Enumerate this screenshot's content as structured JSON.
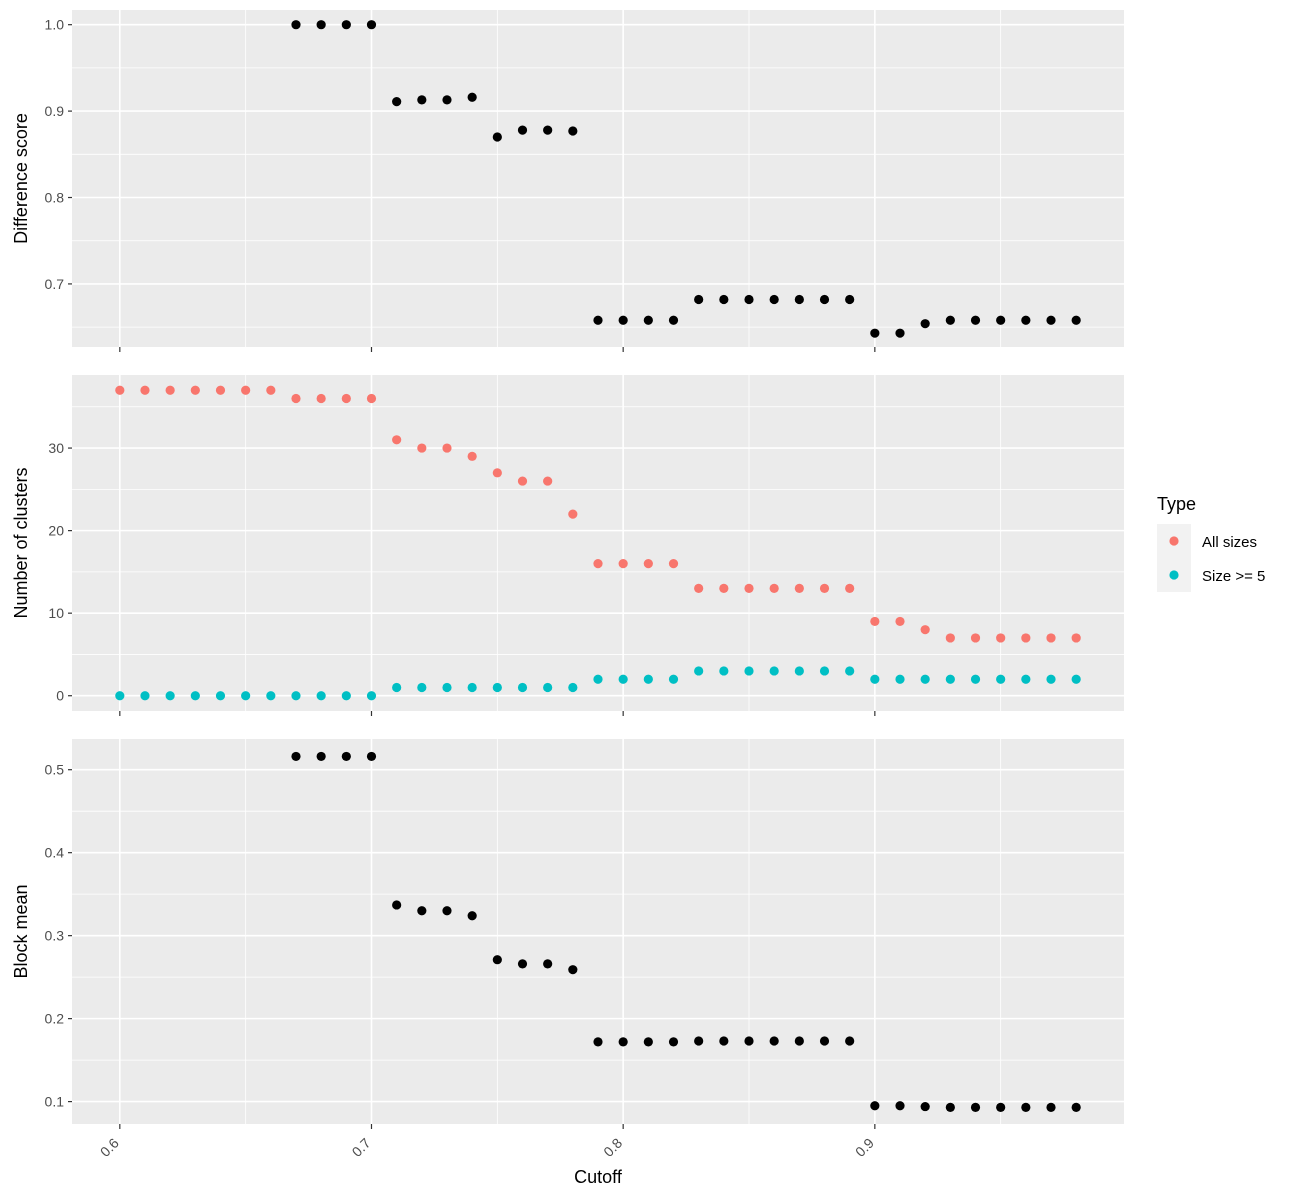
{
  "chart_data": {
    "type": "scatter",
    "xlabel": "Cutoff",
    "xlim": [
      0.581,
      0.999
    ],
    "xticks": [
      0.6,
      0.7,
      0.8,
      0.9
    ],
    "xminor": [
      0.65,
      0.75,
      0.85,
      0.95
    ],
    "xtick_labels": [
      "0.6",
      "0.7",
      "0.8",
      "0.9"
    ],
    "grid": true,
    "legend": {
      "title": "Type",
      "position": "right",
      "entries": [
        {
          "name": "All sizes",
          "color": "#f8766d"
        },
        {
          "name": "Size >= 5",
          "color": "#00bfc4"
        }
      ]
    },
    "panels": [
      {
        "id": "difference-score",
        "ylabel": "Difference score",
        "ylim": [
          0.627,
          1.017
        ],
        "yticks": [
          0.7,
          0.8,
          0.9,
          1.0
        ],
        "yminor": [
          0.65,
          0.75,
          0.85,
          0.95
        ],
        "ytick_labels": [
          "0.7",
          "0.8",
          "0.9",
          "1.0"
        ],
        "series": [
          {
            "color": "#000000",
            "x": [
              0.67,
              0.68,
              0.69,
              0.7,
              0.71,
              0.72,
              0.73,
              0.74,
              0.75,
              0.76,
              0.77,
              0.78,
              0.79,
              0.8,
              0.81,
              0.82,
              0.83,
              0.84,
              0.85,
              0.86,
              0.87,
              0.88,
              0.89,
              0.9,
              0.91,
              0.92,
              0.93,
              0.94,
              0.95,
              0.96,
              0.97,
              0.98
            ],
            "y": [
              1.0,
              1.0,
              1.0,
              1.0,
              0.911,
              0.913,
              0.913,
              0.916,
              0.87,
              0.878,
              0.878,
              0.877,
              0.658,
              0.658,
              0.658,
              0.658,
              0.682,
              0.682,
              0.682,
              0.682,
              0.682,
              0.682,
              0.682,
              0.643,
              0.643,
              0.654,
              0.658,
              0.658,
              0.658,
              0.658,
              0.658,
              0.658
            ]
          }
        ]
      },
      {
        "id": "number-of-clusters",
        "ylabel": "Number of clusters",
        "ylim": [
          -1.85,
          38.85
        ],
        "yticks": [
          0,
          10,
          20,
          30
        ],
        "yminor": [
          5,
          15,
          25,
          35
        ],
        "ytick_labels": [
          "0",
          "10",
          "20",
          "30"
        ],
        "series": [
          {
            "name": "All sizes",
            "color": "#f8766d",
            "x": [
              0.6,
              0.61,
              0.62,
              0.63,
              0.64,
              0.65,
              0.66,
              0.67,
              0.68,
              0.69,
              0.7,
              0.71,
              0.72,
              0.73,
              0.74,
              0.75,
              0.76,
              0.77,
              0.78,
              0.79,
              0.8,
              0.81,
              0.82,
              0.83,
              0.84,
              0.85,
              0.86,
              0.87,
              0.88,
              0.89,
              0.9,
              0.91,
              0.92,
              0.93,
              0.94,
              0.95,
              0.96,
              0.97,
              0.98
            ],
            "y": [
              37,
              37,
              37,
              37,
              37,
              37,
              37,
              36,
              36,
              36,
              36,
              31,
              30,
              30,
              29,
              27,
              26,
              26,
              22,
              16,
              16,
              16,
              16,
              13,
              13,
              13,
              13,
              13,
              13,
              13,
              9,
              9,
              8,
              7,
              7,
              7,
              7,
              7,
              7
            ]
          },
          {
            "name": "Size >= 5",
            "color": "#00bfc4",
            "x": [
              0.6,
              0.61,
              0.62,
              0.63,
              0.64,
              0.65,
              0.66,
              0.67,
              0.68,
              0.69,
              0.7,
              0.71,
              0.72,
              0.73,
              0.74,
              0.75,
              0.76,
              0.77,
              0.78,
              0.79,
              0.8,
              0.81,
              0.82,
              0.83,
              0.84,
              0.85,
              0.86,
              0.87,
              0.88,
              0.89,
              0.9,
              0.91,
              0.92,
              0.93,
              0.94,
              0.95,
              0.96,
              0.97,
              0.98
            ],
            "y": [
              0,
              0,
              0,
              0,
              0,
              0,
              0,
              0,
              0,
              0,
              0,
              1,
              1,
              1,
              1,
              1,
              1,
              1,
              1,
              2,
              2,
              2,
              2,
              3,
              3,
              3,
              3,
              3,
              3,
              3,
              2,
              2,
              2,
              2,
              2,
              2,
              2,
              2,
              2
            ]
          }
        ]
      },
      {
        "id": "block-mean",
        "ylabel": "Block mean",
        "ylim": [
          0.073,
          0.537
        ],
        "yticks": [
          0.1,
          0.2,
          0.3,
          0.4,
          0.5
        ],
        "yminor": [
          0.15,
          0.25,
          0.35,
          0.45
        ],
        "ytick_labels": [
          "0.1",
          "0.2",
          "0.3",
          "0.4",
          "0.5"
        ],
        "series": [
          {
            "color": "#000000",
            "x": [
              0.67,
              0.68,
              0.69,
              0.7,
              0.71,
              0.72,
              0.73,
              0.74,
              0.75,
              0.76,
              0.77,
              0.78,
              0.79,
              0.8,
              0.81,
              0.82,
              0.83,
              0.84,
              0.85,
              0.86,
              0.87,
              0.88,
              0.89,
              0.9,
              0.91,
              0.92,
              0.93,
              0.94,
              0.95,
              0.96,
              0.97,
              0.98
            ],
            "y": [
              0.516,
              0.516,
              0.516,
              0.516,
              0.337,
              0.33,
              0.33,
              0.324,
              0.271,
              0.266,
              0.266,
              0.259,
              0.172,
              0.172,
              0.172,
              0.172,
              0.173,
              0.173,
              0.173,
              0.173,
              0.173,
              0.173,
              0.173,
              0.095,
              0.095,
              0.094,
              0.093,
              0.093,
              0.093,
              0.093,
              0.093,
              0.093
            ]
          }
        ]
      }
    ]
  }
}
